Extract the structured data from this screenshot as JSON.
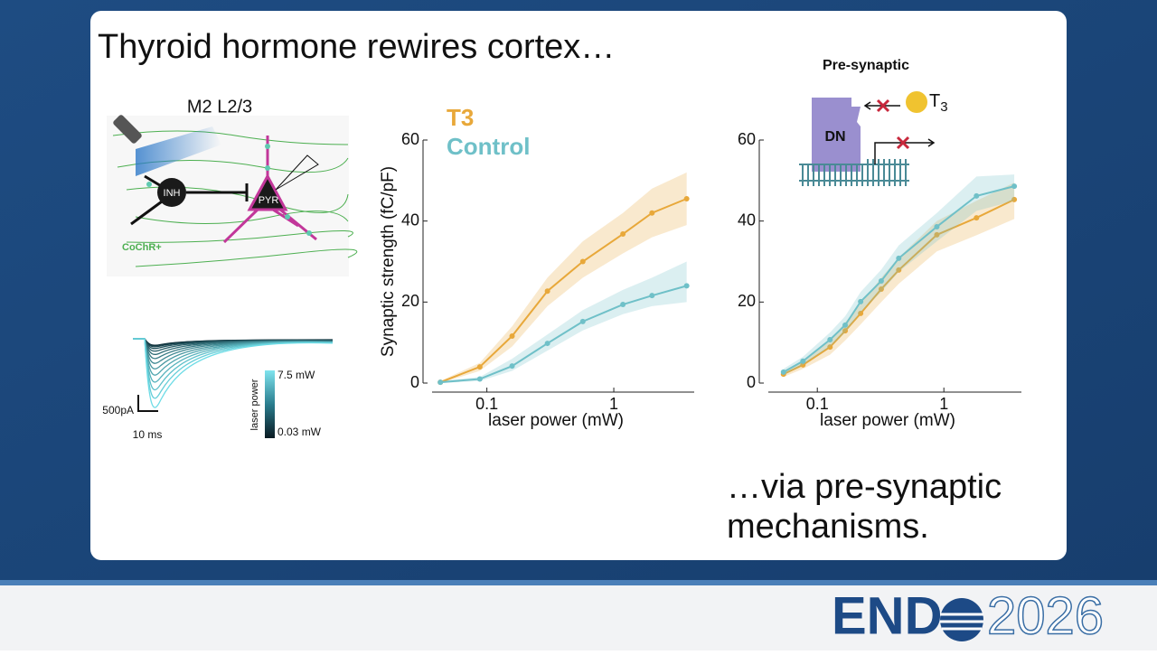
{
  "slide": {
    "title": "Thyroid hormone rewires cortex…",
    "caption": [
      "…via pre-synaptic",
      "mechanisms."
    ],
    "logo": {
      "left": "END",
      "right": "2026"
    }
  },
  "diagram": {
    "label": "M2 L2/3",
    "inh": "INH",
    "pyr": "PYR",
    "cochr": "CoChR+",
    "scale_y": "500pA",
    "scale_x": "10 ms",
    "colorbar_title": "laser power",
    "colorbar_max": "7.5  mW",
    "colorbar_min": "0.03 mW"
  },
  "mechanism": {
    "title": "Pre-synaptic",
    "protein": "DN",
    "hormone": "T",
    "hormone_sub": "3"
  },
  "chart_data": [
    {
      "type": "line",
      "y_label": "Synaptic strength (fC/pF)",
      "x_label": "laser power (mW)",
      "x_scale": "log",
      "xlim": [
        0.037,
        4.3
      ],
      "ylim": [
        0,
        60
      ],
      "xticks": [
        0.1,
        1
      ],
      "yticks": [
        0,
        20,
        40,
        60
      ],
      "series": [
        {
          "name": "T3",
          "color": "#e8a83a",
          "x": [
            0.043,
            0.088,
            0.158,
            0.3,
            0.57,
            1.18,
            2.0,
            3.75
          ],
          "values": [
            0.2,
            4,
            11.6,
            22.7,
            30,
            36.8,
            42,
            45.5
          ],
          "lower": [
            0,
            3,
            9,
            19,
            26,
            32,
            36,
            39
          ],
          "upper": [
            0.5,
            5,
            14,
            26,
            35,
            42,
            48,
            52
          ]
        },
        {
          "name": "Control",
          "color": "#6fc0c8",
          "x": [
            0.043,
            0.088,
            0.158,
            0.3,
            0.57,
            1.18,
            2.0,
            3.75
          ],
          "values": [
            0.2,
            1,
            4.2,
            9.8,
            15.2,
            19.4,
            21.6,
            24
          ],
          "lower": [
            0,
            0.5,
            3,
            8,
            13,
            17,
            19,
            20
          ],
          "upper": [
            0.5,
            1.5,
            6,
            12,
            18,
            23,
            26,
            30
          ]
        }
      ]
    },
    {
      "type": "line",
      "x_label": "laser power (mW)",
      "x_scale": "log",
      "xlim": [
        0.041,
        4.1
      ],
      "ylim": [
        0,
        60
      ],
      "xticks": [
        0.1,
        1
      ],
      "yticks": [
        0,
        20,
        40,
        60
      ],
      "series": [
        {
          "color": "#e8a83a",
          "x": [
            0.054,
            0.077,
            0.126,
            0.166,
            0.22,
            0.32,
            0.44,
            0.88,
            1.81,
            3.6
          ],
          "values": [
            2.2,
            4.5,
            8.9,
            12.9,
            17.2,
            23.2,
            27.9,
            36.6,
            40.8,
            45.3
          ],
          "lower": [
            1.5,
            3.5,
            7,
            10.5,
            14.5,
            20,
            24.5,
            32.5,
            36.5,
            40.5
          ],
          "upper": [
            3,
            5.5,
            10.5,
            15,
            19.5,
            26,
            31,
            40,
            45,
            49.5
          ]
        },
        {
          "color": "#6fc0c8",
          "x": [
            0.054,
            0.077,
            0.126,
            0.166,
            0.22,
            0.32,
            0.44,
            0.88,
            1.81,
            3.6
          ],
          "values": [
            2.7,
            5.4,
            10.7,
            14.3,
            20.1,
            25.2,
            30.8,
            38.6,
            46.2,
            48.6
          ],
          "lower": [
            2,
            4.5,
            9,
            12.5,
            17.5,
            22.5,
            27.5,
            35,
            42.5,
            45
          ],
          "upper": [
            3.5,
            6.5,
            12.5,
            16.5,
            22.5,
            28,
            34,
            42,
            51,
            51.5
          ]
        }
      ]
    }
  ]
}
